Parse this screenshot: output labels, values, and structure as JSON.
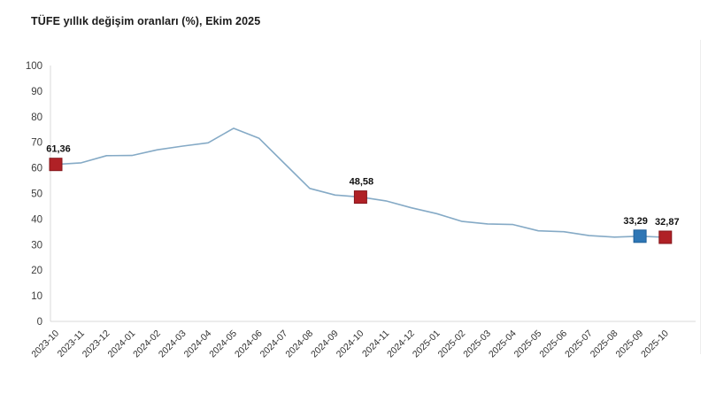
{
  "title": "TÜFE yıllık değişim oranları (%), Ekim 2025",
  "chart_data": {
    "type": "line",
    "x": [
      "2023-10",
      "2023-11",
      "2023-12",
      "2024-01",
      "2024-02",
      "2024-03",
      "2024-04",
      "2024-05",
      "2024-06",
      "2024-07",
      "2024-08",
      "2024-09",
      "2024-10",
      "2024-11",
      "2024-12",
      "2025-01",
      "2025-02",
      "2025-03",
      "2025-04",
      "2025-05",
      "2025-06",
      "2025-07",
      "2025-08",
      "2025-09",
      "2025-10"
    ],
    "series": [
      {
        "name": "TÜFE yıllık değişim oranı (%)",
        "values": [
          61.36,
          61.98,
          64.77,
          64.86,
          67.07,
          68.5,
          69.8,
          75.45,
          71.6,
          61.78,
          51.97,
          49.38,
          48.58,
          47.09,
          44.38,
          42.12,
          39.05,
          38.1,
          37.86,
          35.41,
          35.05,
          33.52,
          32.95,
          33.29,
          32.87
        ]
      }
    ],
    "title": "TÜFE yıllık değişim oranları (%), Ekim 2025",
    "xlabel": "",
    "ylabel": "",
    "ylim": [
      0,
      100
    ],
    "ytick_step": 10,
    "grid": false,
    "legend": "none",
    "line_color": "#85aac6",
    "axis_color": "#d9d9d9",
    "markers": [
      {
        "x": "2023-10",
        "value": 61.36,
        "label": "61,36",
        "color": "#b02126",
        "border": "#84161b"
      },
      {
        "x": "2024-10",
        "value": 48.58,
        "label": "48,58",
        "color": "#b02126",
        "border": "#84161b"
      },
      {
        "x": "2025-09",
        "value": 33.29,
        "label": "33,29",
        "color": "#2e76b5",
        "border": "#1f5f99"
      },
      {
        "x": "2025-10",
        "value": 32.87,
        "label": "32,87",
        "color": "#b02126",
        "border": "#84161b"
      }
    ]
  }
}
